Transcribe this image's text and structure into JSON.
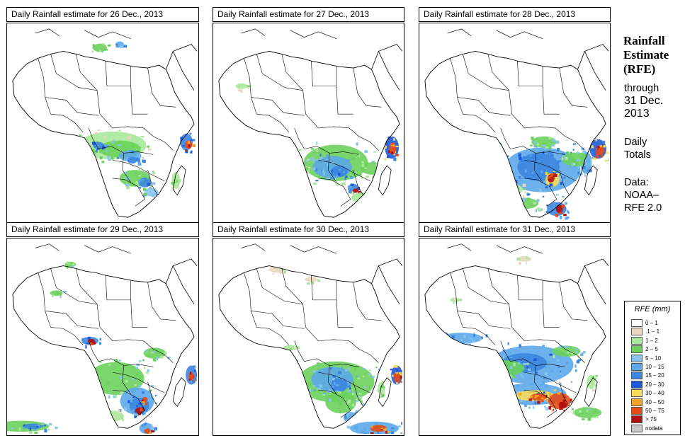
{
  "panels": [
    {
      "title": "Daily Rainfall estimate for  26 Dec., 2013",
      "date": "26 Dec., 2013"
    },
    {
      "title": "Daily Rainfall estimate for  27 Dec., 2013",
      "date": "27 Dec., 2013"
    },
    {
      "title": "Daily Rainfall estimate for  28 Dec., 2013",
      "date": "28 Dec., 2013"
    },
    {
      "title": "Daily Rainfall estimate for  29 Dec., 2013",
      "date": "29 Dec., 2013"
    },
    {
      "title": "Daily Rainfall estimate for  30 Dec., 2013",
      "date": "30 Dec., 2013"
    },
    {
      "title": "Daily Rainfall estimate for  31 Dec., 2013",
      "date": "31 Dec., 2013"
    }
  ],
  "sidebar": {
    "title_line1": "Rainfall",
    "title_line2": "Estimate",
    "title_line3": "(RFE)",
    "through_label": "through",
    "through_date_line1": "31 Dec.",
    "through_date_line2": "2013",
    "totals_line1": "Daily",
    "totals_line2": "Totals",
    "source_line1": "Data:",
    "source_line2": "NOAA–",
    "source_line3": "RFE 2.0"
  },
  "legend": {
    "title": "RFE (mm)",
    "bins": [
      {
        "label": "0 – 1",
        "color": "#ffffff"
      },
      {
        "label": ".1 – 1",
        "color": "#e9d7c1"
      },
      {
        "label": "1 – 2",
        "color": "#a8e89a"
      },
      {
        "label": "2 – 5",
        "color": "#6cd15c"
      },
      {
        "label": "5 – 10",
        "color": "#88c4ee"
      },
      {
        "label": "10 – 15",
        "color": "#5ca8ea"
      },
      {
        "label": "15 – 20",
        "color": "#3c86e0"
      },
      {
        "label": "20 – 30",
        "color": "#1e5ad6"
      },
      {
        "label": "30 – 40",
        "color": "#f6dc5a"
      },
      {
        "label": "40 – 50",
        "color": "#f3a32a"
      },
      {
        "label": "50 – 75",
        "color": "#e44b17"
      },
      {
        "label": "> 75",
        "color": "#b01010"
      },
      {
        "label": "nodata",
        "color": "#c8c8c8"
      }
    ]
  }
}
